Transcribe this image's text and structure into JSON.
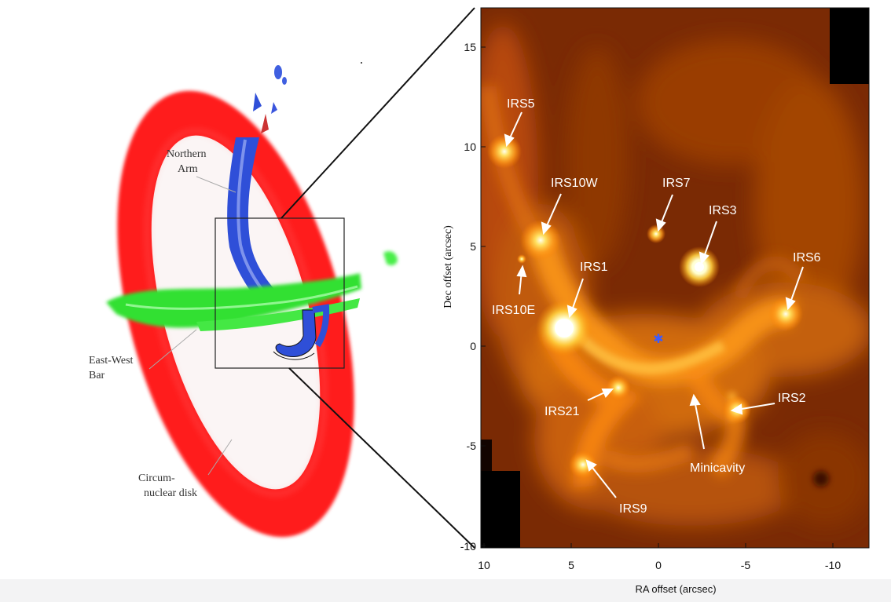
{
  "left_panel": {
    "labels": {
      "northern_arm": [
        "Northern",
        "Arm"
      ],
      "east_west_bar": [
        "East-West",
        "Bar"
      ],
      "circumnuclear_disk": [
        "Circum-",
        "nuclear disk"
      ]
    },
    "colors": {
      "circumnuclear_disk": "#ff1a1a",
      "northern_arm": "#2f4fd8",
      "east_west_bar": "#33e033",
      "disk_interior": "#fbf5f5"
    }
  },
  "right_panel": {
    "x_axis_label": "RA offset (arcsec)",
    "y_axis_label": "Dec offset (arcsec)",
    "x_ticks": [
      "10",
      "5",
      "0",
      "-5",
      "-10"
    ],
    "y_ticks": [
      "15",
      "10",
      "5",
      "0",
      "-5",
      "-10"
    ],
    "sources": {
      "irs5": "IRS5",
      "irs10w": "IRS10W",
      "irs7": "IRS7",
      "irs3": "IRS3",
      "irs6": "IRS6",
      "irs1": "IRS1",
      "irs10e": "IRS10E",
      "irs21": "IRS21",
      "irs2": "IRS2",
      "minicavity": "Minicavity",
      "irs9": "IRS9"
    },
    "colors": {
      "background": "#7a2a04",
      "emission": "#ff9a1a",
      "peak": "#ffffe0",
      "center_marker": "#3b5bff",
      "label": "#ffffff"
    }
  }
}
